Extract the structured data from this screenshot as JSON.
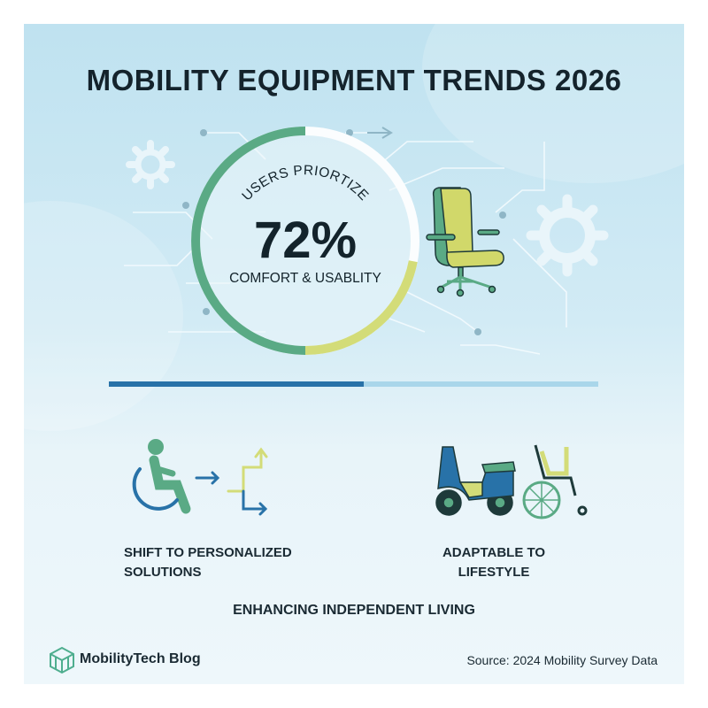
{
  "title": "MOBILITY EQUIPMENT TRENDS 2026",
  "stat": {
    "arc_label": "USERS PRIORTIZE",
    "value": "72%",
    "label": "COMFORT & USABLITY",
    "percent": 72
  },
  "progress_bar": {
    "percent": 52
  },
  "features": [
    {
      "label_line1": "SHIFT TO PERSONALIZED",
      "label_line2": "SOLUTIONS",
      "icon": "wheelchair-user-arrows-icon"
    },
    {
      "label_line1": "ADAPTABLE TO",
      "label_line2": "LIFESTYLE",
      "icon": "scooter-wheelchair-icon"
    }
  ],
  "tagline": "ENHANCING INDEPENDENT LIVING",
  "footer": {
    "brand": "MobilityTech Blog",
    "source": "Source: 2024 Mobility Survey Data"
  },
  "colors": {
    "green": "#5aaa85",
    "yellow": "#d3dc78",
    "blue": "#2872a8",
    "dark": "#13232b"
  }
}
